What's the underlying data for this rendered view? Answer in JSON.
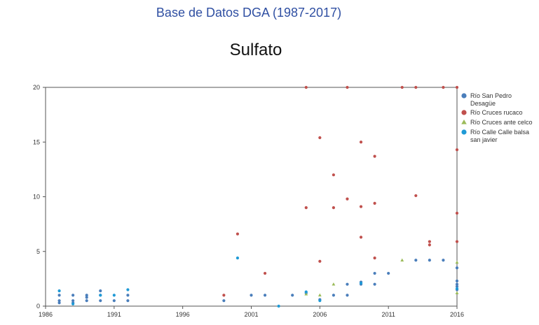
{
  "header": {
    "source": "Base de Datos DGA (1987-2017)"
  },
  "chart_data": {
    "type": "scatter",
    "title": "Sulfato",
    "xlabel": "",
    "ylabel": "",
    "xlim": [
      1986,
      2016
    ],
    "ylim": [
      0,
      20
    ],
    "xticks": [
      1986,
      1991,
      1996,
      2001,
      2006,
      2011,
      2016
    ],
    "yticks": [
      0,
      5,
      10,
      15,
      20
    ],
    "grid": false,
    "legend_position": "right",
    "series": [
      {
        "name": "Río San Pedro Desagüe",
        "marker": "circle",
        "color": "#4a7ebb",
        "points": [
          [
            1987,
            0.3
          ],
          [
            1987,
            0.5
          ],
          [
            1987,
            1.0
          ],
          [
            1988,
            0.3
          ],
          [
            1988,
            0.5
          ],
          [
            1988,
            1.0
          ],
          [
            1989,
            0.5
          ],
          [
            1989,
            0.8
          ],
          [
            1989,
            1.0
          ],
          [
            1990,
            0.5
          ],
          [
            1990,
            1.0
          ],
          [
            1990,
            1.4
          ],
          [
            1991,
            0.5
          ],
          [
            1992,
            0.5
          ],
          [
            1992,
            1.0
          ],
          [
            1999,
            0.5
          ],
          [
            2001,
            1.0
          ],
          [
            2002,
            1.0
          ],
          [
            2004,
            1.0
          ],
          [
            2005,
            1.2
          ],
          [
            2006,
            0.6
          ],
          [
            2007,
            1.0
          ],
          [
            2008,
            1.0
          ],
          [
            2008,
            2.0
          ],
          [
            2009,
            2.0
          ],
          [
            2009,
            2.2
          ],
          [
            2010,
            2.0
          ],
          [
            2010,
            3.0
          ],
          [
            2011,
            3.0
          ],
          [
            2013,
            4.2
          ],
          [
            2014,
            4.2
          ],
          [
            2015,
            4.2
          ],
          [
            2016,
            3.5
          ],
          [
            2016,
            2.3
          ],
          [
            2016,
            2.0
          ],
          [
            2016,
            1.8
          ],
          [
            2016,
            1.5
          ]
        ]
      },
      {
        "name": "Río Cruces rucaco",
        "marker": "circle",
        "color": "#c0504d",
        "points": [
          [
            1999,
            1.0
          ],
          [
            2000,
            6.6
          ],
          [
            2002,
            3.0
          ],
          [
            2005,
            20.0
          ],
          [
            2005,
            9.0
          ],
          [
            2006,
            15.4
          ],
          [
            2006,
            4.1
          ],
          [
            2007,
            12.0
          ],
          [
            2007,
            9.0
          ],
          [
            2008,
            9.8
          ],
          [
            2008,
            20.0
          ],
          [
            2009,
            15.0
          ],
          [
            2009,
            9.1
          ],
          [
            2009,
            6.3
          ],
          [
            2010,
            13.7
          ],
          [
            2010,
            9.4
          ],
          [
            2010,
            4.4
          ],
          [
            2012,
            20.0
          ],
          [
            2013,
            10.1
          ],
          [
            2013,
            20.0
          ],
          [
            2014,
            5.9
          ],
          [
            2014,
            5.6
          ],
          [
            2015,
            20.0
          ],
          [
            2016,
            20.0
          ],
          [
            2016,
            14.3
          ],
          [
            2016,
            8.5
          ],
          [
            2016,
            5.9
          ]
        ]
      },
      {
        "name": "Río Cruces ante celco",
        "marker": "triangle",
        "color": "#9bbb59",
        "points": [
          [
            2005,
            1.1
          ],
          [
            2006,
            1.0
          ],
          [
            2007,
            2.0
          ],
          [
            2012,
            4.2
          ],
          [
            2016,
            4.0
          ],
          [
            2016,
            1.2
          ]
        ]
      },
      {
        "name": "Río Calle Calle balsa san javier",
        "marker": "circle",
        "color": "#1f9ad6",
        "points": [
          [
            1987,
            1.4
          ],
          [
            1988,
            0.2
          ],
          [
            1990,
            1.0
          ],
          [
            1991,
            1.0
          ],
          [
            1992,
            1.5
          ],
          [
            2000,
            4.4
          ],
          [
            2003,
            0.0
          ],
          [
            2005,
            1.3
          ],
          [
            2006,
            0.5
          ],
          [
            2009,
            2.1
          ],
          [
            2016,
            1.6
          ]
        ]
      }
    ]
  },
  "legend": {
    "entries": [
      {
        "lines": [
          "Río San Pedro",
          "Desagüe"
        ]
      },
      {
        "lines": [
          "Río Cruces rucaco"
        ]
      },
      {
        "lines": [
          "Río Cruces ante celco"
        ]
      },
      {
        "lines": [
          "Río Calle Calle balsa",
          "san javier"
        ]
      }
    ]
  }
}
